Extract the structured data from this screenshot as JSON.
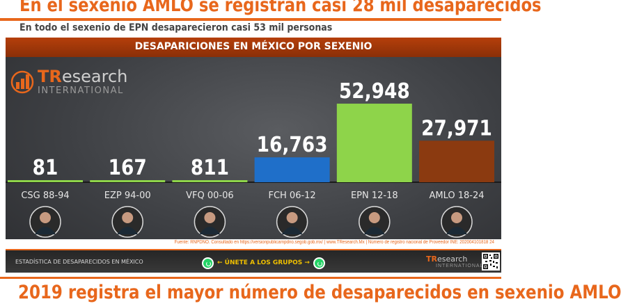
{
  "headline": "En el sexenio AMLO se registran casi 28 mil desaparecidos",
  "subheadline": "En todo el sexenio de EPN desaparecieron casi 53 mil personas",
  "brand": {
    "name_a": "TR",
    "name_b": "esearch",
    "tagline": "INTERNATIONAL"
  },
  "source_note": "Fuente: RNPDNO. Consultado en https://versionpublicarnpdno.segob.gob.mx/ | www.TResearch.Mx | Número de registro nacional de Proveedor INE: 202004101818 24",
  "footer": {
    "left_text": "ESTADÍSTICA DE DESAPARECIDOS EN MÉXICO",
    "join_text": "← ÚNETE A LOS GRUPOS →",
    "brand_a": "TR",
    "brand_b": "esearch",
    "brand_tagline": "INTERNATIONAL"
  },
  "bottom_headline": "2019 registra el mayor número de desaparecidos en sexenio AMLO",
  "colors": {
    "accent": "#e8671c",
    "green": "#8ed44a",
    "blue": "#1f6fc9",
    "brown": "#8b3a10"
  },
  "chart_data": {
    "type": "bar",
    "title": "DESAPARICIONES EN MÉXICO POR SEXENIO",
    "categories": [
      "CSG 88-94",
      "EZP 94-00",
      "VFQ 00-06",
      "FCH 06-12",
      "EPN 12-18",
      "AMLO 18-24"
    ],
    "values": [
      81,
      167,
      811,
      16763,
      52948,
      27971
    ],
    "value_labels": [
      "81",
      "167",
      "811",
      "16,763",
      "52,948",
      "27,971"
    ],
    "bar_colors": [
      "#8ed44a",
      "#8ed44a",
      "#8ed44a",
      "#1f6fc9",
      "#8ed44a",
      "#8b3a10"
    ],
    "xlabel": "",
    "ylabel": "",
    "ylim": [
      0,
      60000
    ],
    "grid": false,
    "legend": "none"
  }
}
